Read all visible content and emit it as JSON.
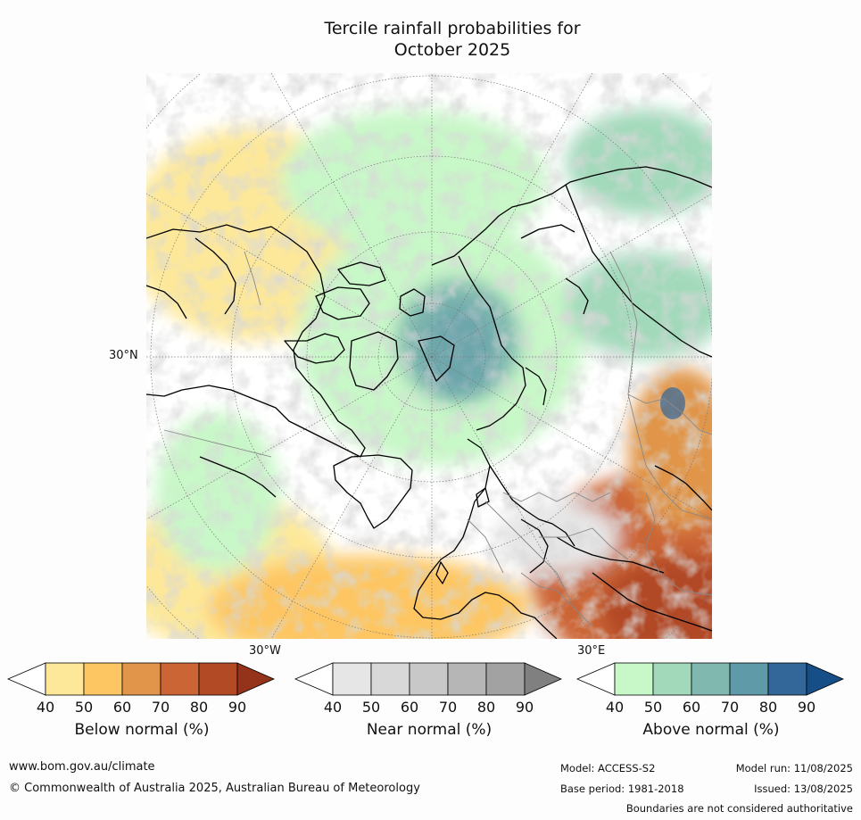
{
  "title_line1": "Tercile rainfall probabilities for",
  "title_line2": "October 2025",
  "map": {
    "latitude_label": "30°N",
    "longitude_label_west": "30°W",
    "longitude_label_east": "30°E",
    "projection": "north polar stereographic"
  },
  "legends": [
    {
      "label": "Below normal (%)",
      "ticks": [
        "40",
        "50",
        "60",
        "70",
        "80",
        "90"
      ],
      "colors": [
        "#ffffff",
        "#fde89a",
        "#fdc662",
        "#e0954a",
        "#cc6535",
        "#b24a26",
        "#94321a"
      ]
    },
    {
      "label": "Near normal (%)",
      "ticks": [
        "40",
        "50",
        "60",
        "70",
        "80",
        "90"
      ],
      "colors": [
        "#ffffff",
        "#e6e6e6",
        "#d8d8d8",
        "#c8c8c8",
        "#b6b6b6",
        "#a2a2a2",
        "#808080"
      ]
    },
    {
      "label": "Above normal (%)",
      "ticks": [
        "40",
        "50",
        "60",
        "70",
        "80",
        "90"
      ],
      "colors": [
        "#ffffff",
        "#c8f7c8",
        "#a3d9bb",
        "#80b8b0",
        "#5e9aa8",
        "#33679a",
        "#164e88"
      ]
    }
  ],
  "footer": {
    "website": "www.bom.gov.au/climate",
    "copyright": "© Commonwealth of Australia 2025, Australian Bureau of Meteorology",
    "model": "Model: ACCESS-S2",
    "base_period": "Base period: 1981-2018",
    "model_run": "Model run: 11/08/2025",
    "issued": "Issued: 13/08/2025",
    "disclaimer": "Boundaries are not considered authoritative"
  }
}
